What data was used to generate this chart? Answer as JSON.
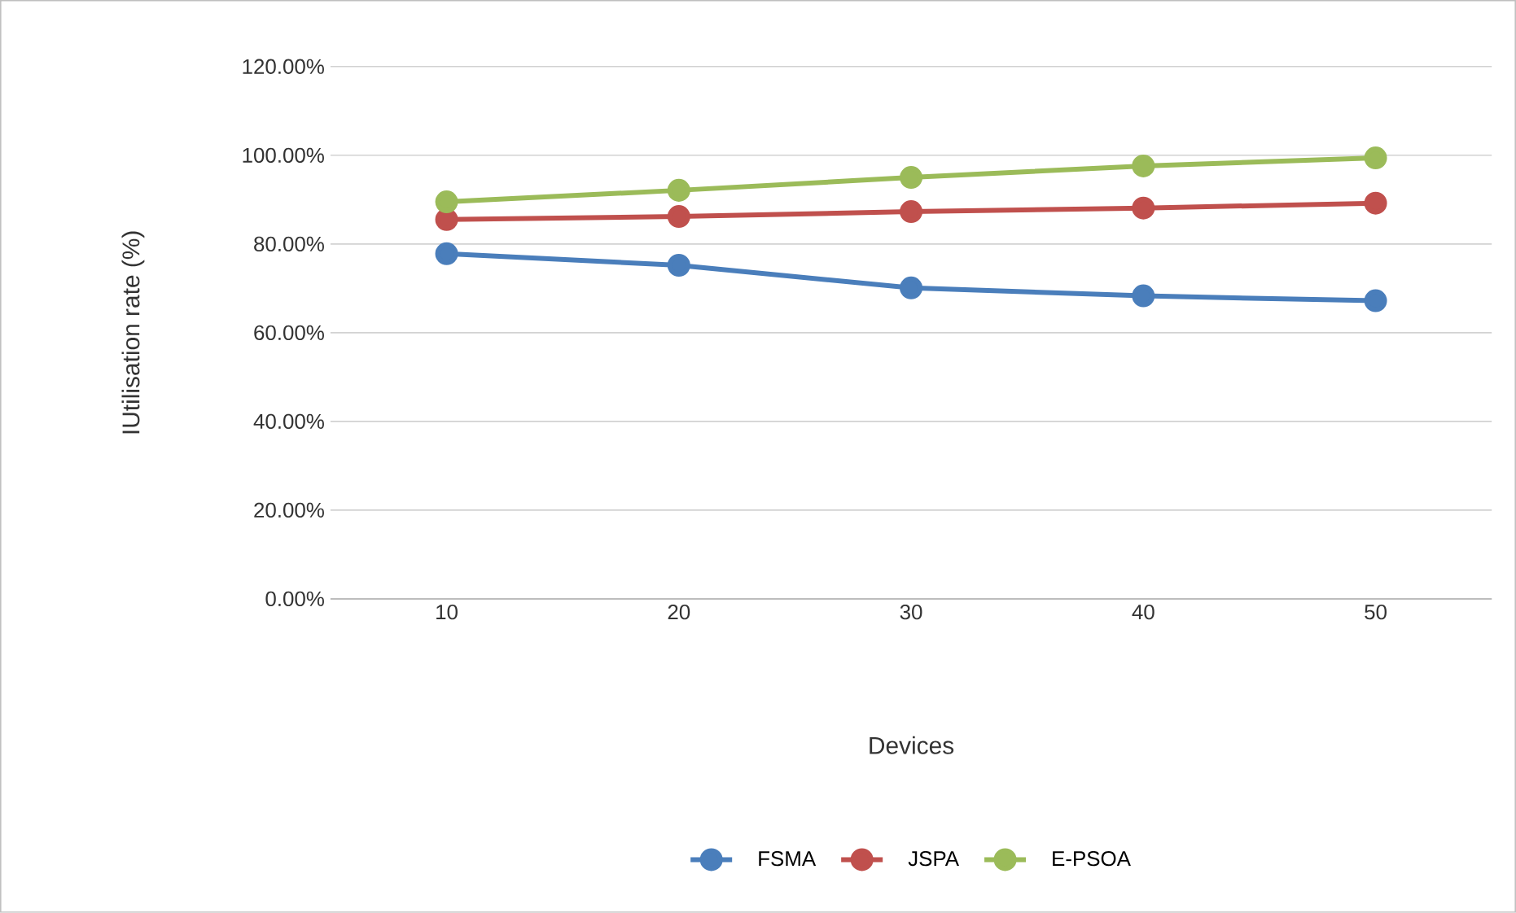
{
  "chart_data": {
    "type": "line",
    "xlabel": "Devices",
    "ylabel": "IUtilisation rate (%)",
    "categories": [
      "10",
      "20",
      "30",
      "40",
      "50"
    ],
    "series": [
      {
        "name": "FSMA",
        "color": "#4a7ebb",
        "values": [
          77.8,
          75.2,
          70.1,
          68.3,
          67.2
        ]
      },
      {
        "name": "JSPA",
        "color": "#c0504d",
        "values": [
          85.5,
          86.2,
          87.3,
          88.1,
          89.2
        ]
      },
      {
        "name": "E-PSOA",
        "color": "#9bbb59",
        "values": [
          89.5,
          92.1,
          95.0,
          97.6,
          99.4
        ]
      }
    ],
    "ylim": [
      0,
      120
    ],
    "yticks": [
      {
        "value": 0,
        "label": "0.00%"
      },
      {
        "value": 20,
        "label": "20.00%"
      },
      {
        "value": 40,
        "label": "40.00%"
      },
      {
        "value": 60,
        "label": "60.00%"
      },
      {
        "value": 80,
        "label": "80.00%"
      },
      {
        "value": 100,
        "label": "100.00%"
      },
      {
        "value": 120,
        "label": "120.00%"
      }
    ],
    "grid": "y",
    "legend": "bottom",
    "marker": "circle",
    "line_style": "solid"
  }
}
